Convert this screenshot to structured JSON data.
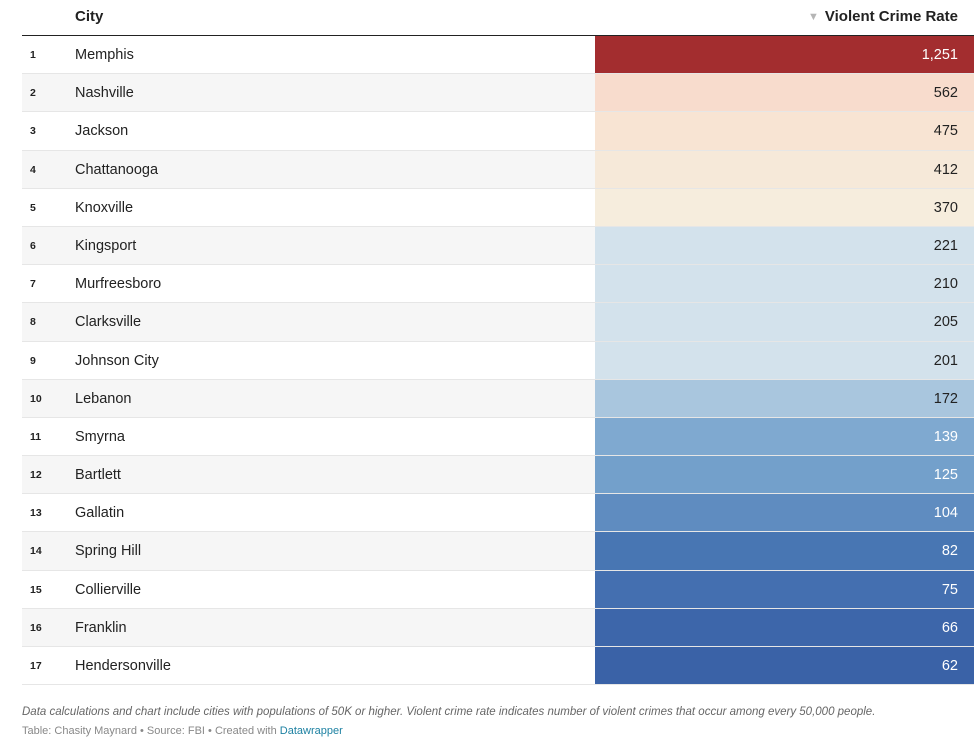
{
  "header": {
    "city": "City",
    "rate": "Violent Crime Rate",
    "sort_icon": "sort-desc-icon"
  },
  "colors": {
    "max": "#a32d2f",
    "scale_high": "#3b62a7",
    "scale_low": "#d3e2ec"
  },
  "rows": [
    {
      "rank": "1",
      "city": "Memphis",
      "rate_label": "1,251",
      "bg": "#a32d2f",
      "fg": "#ffffff"
    },
    {
      "rank": "2",
      "city": "Nashville",
      "rate_label": "562",
      "bg": "#f8dccd",
      "fg": "#222222"
    },
    {
      "rank": "3",
      "city": "Jackson",
      "rate_label": "475",
      "bg": "#f8e4d3",
      "fg": "#222222"
    },
    {
      "rank": "4",
      "city": "Chattanooga",
      "rate_label": "412",
      "bg": "#f6e9d9",
      "fg": "#222222"
    },
    {
      "rank": "5",
      "city": "Knoxville",
      "rate_label": "370",
      "bg": "#f6eddd",
      "fg": "#222222"
    },
    {
      "rank": "6",
      "city": "Kingsport",
      "rate_label": "221",
      "bg": "#d3e2ec",
      "fg": "#222222"
    },
    {
      "rank": "7",
      "city": "Murfreesboro",
      "rate_label": "210",
      "bg": "#d3e2ec",
      "fg": "#222222"
    },
    {
      "rank": "8",
      "city": "Clarksville",
      "rate_label": "205",
      "bg": "#d3e2ec",
      "fg": "#222222"
    },
    {
      "rank": "9",
      "city": "Johnson City",
      "rate_label": "201",
      "bg": "#d3e2ec",
      "fg": "#222222"
    },
    {
      "rank": "10",
      "city": "Lebanon",
      "rate_label": "172",
      "bg": "#a9c6de",
      "fg": "#222222"
    },
    {
      "rank": "11",
      "city": "Smyrna",
      "rate_label": "139",
      "bg": "#7fa9d0",
      "fg": "#ffffff"
    },
    {
      "rank": "12",
      "city": "Bartlett",
      "rate_label": "125",
      "bg": "#73a0cb",
      "fg": "#ffffff"
    },
    {
      "rank": "13",
      "city": "Gallatin",
      "rate_label": "104",
      "bg": "#5f8cc0",
      "fg": "#ffffff"
    },
    {
      "rank": "14",
      "city": "Spring Hill",
      "rate_label": "82",
      "bg": "#4876b3",
      "fg": "#ffffff"
    },
    {
      "rank": "15",
      "city": "Collierville",
      "rate_label": "75",
      "bg": "#446fb0",
      "fg": "#ffffff"
    },
    {
      "rank": "16",
      "city": "Franklin",
      "rate_label": "66",
      "bg": "#3d66aa",
      "fg": "#ffffff"
    },
    {
      "rank": "17",
      "city": "Hendersonville",
      "rate_label": "62",
      "bg": "#3a62a7",
      "fg": "#ffffff"
    }
  ],
  "chart_data": {
    "type": "table",
    "columns": [
      "",
      "City",
      "Violent Crime Rate"
    ],
    "sort": {
      "column": "Violent Crime Rate",
      "order": "descending"
    },
    "categories": [
      "Memphis",
      "Nashville",
      "Jackson",
      "Chattanooga",
      "Knoxville",
      "Kingsport",
      "Murfreesboro",
      "Clarksville",
      "Johnson City",
      "Lebanon",
      "Smyrna",
      "Bartlett",
      "Gallatin",
      "Spring Hill",
      "Collierville",
      "Franklin",
      "Hendersonville"
    ],
    "values": [
      1251,
      562,
      475,
      412,
      370,
      221,
      210,
      205,
      201,
      172,
      139,
      125,
      104,
      82,
      75,
      66,
      62
    ]
  },
  "footer": {
    "note": "Data calculations and chart include cities with populations of 50K or higher. Violent crime rate indicates number of violent crimes that occur among every 50,000 people.",
    "source_text": "Table: Chasity Maynard • Source: FBI • Created with ",
    "source_link": "Datawrapper"
  }
}
